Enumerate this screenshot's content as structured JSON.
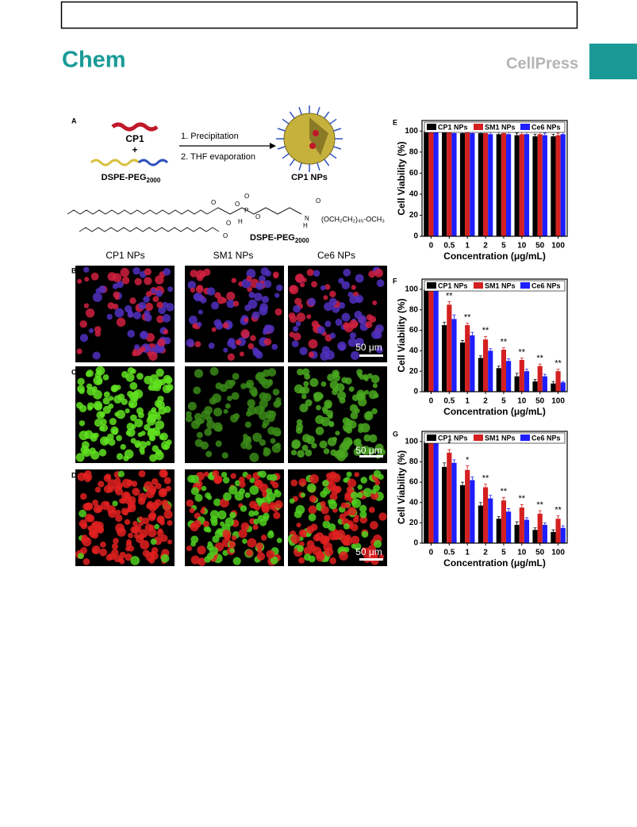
{
  "header": {
    "journal": "Chem",
    "publisher": "CellPress"
  },
  "figure": {
    "panel_labels": [
      "A",
      "B",
      "C",
      "D",
      "E",
      "F",
      "G"
    ],
    "schematic": {
      "cp1": "CP1",
      "plus": "+",
      "lipid": {
        "text": "DSPE-PEG",
        "sub": "2000"
      },
      "step1": "1. Precipitation",
      "step2": "2. THF evaporation",
      "product": "CP1 NPs",
      "structure_label": {
        "text": "DSPE-PEG",
        "sub": "2000"
      },
      "peg_group": "(OCH₂CH₂)₄₅-OCH₃",
      "atoms": [
        "O",
        "O",
        "P",
        "O",
        "O",
        "N",
        "H",
        "H",
        "O",
        "O",
        "O"
      ]
    },
    "column_headers": [
      "CP1 NPs",
      "SM1 NPs",
      "Ce6 NPs"
    ],
    "scale_bars": [
      "50 μm",
      "50 μm",
      "50 μm"
    ]
  },
  "chart_data": [
    {
      "type": "bar",
      "panel": "E",
      "ylabel": "Cell Viability (%)",
      "xlabel": "Concentration (μg/mL)",
      "categories": [
        "0",
        "0.5",
        "1",
        "2",
        "5",
        "10",
        "50",
        "100"
      ],
      "ylim": [
        0,
        110
      ],
      "yticks": [
        0,
        20,
        40,
        60,
        80,
        100
      ],
      "legend": "top",
      "series": [
        {
          "name": "CP1 NPs",
          "color": "#000000",
          "values": [
            100,
            100,
            98,
            98,
            97,
            96,
            95,
            95
          ],
          "errors": [
            1,
            1,
            2,
            2,
            2,
            2,
            2,
            2
          ]
        },
        {
          "name": "SM1 NPs",
          "color": "#d42020",
          "values": [
            100,
            99,
            99,
            98,
            98,
            97,
            97,
            96
          ],
          "errors": [
            1,
            1,
            2,
            1,
            2,
            2,
            2,
            2
          ]
        },
        {
          "name": "Ce6 NPs",
          "color": "#1e1eff",
          "values": [
            100,
            98,
            98,
            97,
            97,
            97,
            96,
            97
          ],
          "errors": [
            1,
            2,
            2,
            2,
            2,
            2,
            2,
            2
          ]
        }
      ]
    },
    {
      "type": "bar",
      "panel": "F",
      "ylabel": "Cell Viability (%)",
      "xlabel": "Concentration (μg/mL)",
      "categories": [
        "0",
        "0.5",
        "1",
        "2",
        "5",
        "10",
        "50",
        "100"
      ],
      "ylim": [
        0,
        110
      ],
      "yticks": [
        0,
        20,
        40,
        60,
        80,
        100
      ],
      "legend": "top",
      "series": [
        {
          "name": "CP1 NPs",
          "color": "#000000",
          "values": [
            100,
            65,
            48,
            33,
            23,
            15,
            10,
            8
          ],
          "errors": [
            1,
            3,
            2,
            2,
            2,
            3,
            2,
            2
          ]
        },
        {
          "name": "SM1 NPs",
          "color": "#d42020",
          "values": [
            100,
            85,
            65,
            51,
            41,
            31,
            25,
            20
          ],
          "errors": [
            1,
            3,
            2,
            3,
            2,
            2,
            2,
            2
          ]
        },
        {
          "name": "Ce6 NPs",
          "color": "#1e1eff",
          "values": [
            100,
            71,
            55,
            40,
            30,
            20,
            15,
            9
          ],
          "errors": [
            1,
            4,
            3,
            2,
            2,
            2,
            2,
            1
          ]
        }
      ],
      "annotations": [
        {
          "category": "0.5",
          "label": "**"
        },
        {
          "category": "1",
          "label": "**"
        },
        {
          "category": "2",
          "label": "**"
        },
        {
          "category": "5",
          "label": "**"
        },
        {
          "category": "10",
          "label": "**"
        },
        {
          "category": "50",
          "label": "**"
        },
        {
          "category": "100",
          "label": "**"
        }
      ]
    },
    {
      "type": "bar",
      "panel": "G",
      "ylabel": "Cell Viability (%)",
      "xlabel": "Concentration (μg/mL)",
      "categories": [
        "0",
        "0.5",
        "1",
        "2",
        "5",
        "10",
        "50",
        "100"
      ],
      "ylim": [
        0,
        110
      ],
      "yticks": [
        0,
        20,
        40,
        60,
        80,
        100
      ],
      "legend": "top",
      "series": [
        {
          "name": "CP1 NPs",
          "color": "#000000",
          "values": [
            100,
            75,
            57,
            37,
            24,
            18,
            13,
            11
          ],
          "errors": [
            1,
            4,
            3,
            3,
            2,
            3,
            2,
            2
          ]
        },
        {
          "name": "SM1 NPs",
          "color": "#d42020",
          "values": [
            100,
            89,
            72,
            55,
            42,
            35,
            29,
            24
          ],
          "errors": [
            1,
            3,
            4,
            3,
            3,
            3,
            3,
            3
          ]
        },
        {
          "name": "Ce6 NPs",
          "color": "#1e1eff",
          "values": [
            100,
            79,
            62,
            44,
            31,
            23,
            18,
            15
          ],
          "errors": [
            1,
            3,
            3,
            3,
            3,
            2,
            2,
            2
          ]
        }
      ],
      "annotations": [
        {
          "category": "0.5",
          "label": "*"
        },
        {
          "category": "1",
          "label": "*"
        },
        {
          "category": "2",
          "label": "**"
        },
        {
          "category": "5",
          "label": "**"
        },
        {
          "category": "10",
          "label": "**"
        },
        {
          "category": "50",
          "label": "**"
        },
        {
          "category": "100",
          "label": "**"
        }
      ]
    }
  ]
}
